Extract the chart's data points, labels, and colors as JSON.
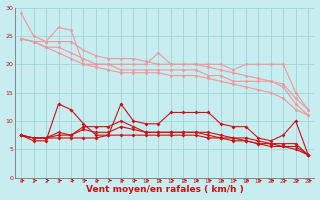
{
  "background_color": "#c8edf0",
  "grid_color": "#a0d4d8",
  "x": [
    0,
    1,
    2,
    3,
    4,
    5,
    6,
    7,
    8,
    9,
    10,
    11,
    12,
    13,
    14,
    15,
    16,
    17,
    18,
    19,
    20,
    21,
    22,
    23
  ],
  "line1": [
    29,
    25,
    24,
    26.5,
    26,
    20,
    20,
    20,
    20,
    20,
    20,
    22,
    20,
    20,
    20,
    20,
    20,
    19,
    20,
    20,
    20,
    20,
    15,
    12
  ],
  "line2": [
    24.5,
    24,
    24,
    24,
    24,
    22.5,
    21.5,
    21,
    21,
    21,
    20.5,
    20,
    20,
    20,
    20,
    19.5,
    19,
    18.5,
    18,
    17.5,
    17,
    16.5,
    14,
    12
  ],
  "line3": [
    24.5,
    24,
    23,
    23,
    22,
    21,
    20,
    20,
    19,
    19,
    19,
    19,
    19,
    19,
    19,
    18,
    18,
    17,
    17,
    17,
    17,
    16,
    13,
    11
  ],
  "line4": [
    24.5,
    24,
    23,
    22,
    21,
    20,
    19.5,
    19,
    18.5,
    18.5,
    18.5,
    18.5,
    18,
    18,
    18,
    17.5,
    17,
    16.5,
    16,
    15.5,
    15,
    14,
    12,
    11
  ],
  "line5": [
    7.5,
    6.5,
    6.5,
    13,
    12,
    9.5,
    7.5,
    7.5,
    13,
    10,
    9.5,
    9.5,
    11.5,
    11.5,
    11.5,
    11.5,
    9.5,
    9,
    9,
    7,
    6.5,
    7.5,
    10,
    4
  ],
  "line6": [
    7.5,
    7,
    7,
    8,
    7.5,
    9,
    9,
    9,
    10,
    9,
    8,
    8,
    8,
    8,
    8,
    8,
    7.5,
    7,
    7,
    6.5,
    6,
    6,
    6,
    4
  ],
  "line7": [
    7.5,
    7,
    7,
    7.5,
    7.5,
    8.5,
    8,
    8,
    9,
    8.5,
    8,
    8,
    8,
    8,
    8,
    7.5,
    7,
    7,
    6.5,
    6,
    6,
    5.5,
    5.5,
    4
  ],
  "line8": [
    7.5,
    7,
    7,
    7,
    7,
    7,
    7,
    7.5,
    7.5,
    7.5,
    7.5,
    7.5,
    7.5,
    7.5,
    7.5,
    7,
    7,
    6.5,
    6.5,
    6,
    5.5,
    5.5,
    5,
    4
  ],
  "color_light": "#f09898",
  "color_dark": "#cc1111",
  "xlabel": "Vent moyen/en rafales ( km/h )",
  "ylim": [
    0,
    30
  ],
  "xlim": [
    0,
    23
  ]
}
